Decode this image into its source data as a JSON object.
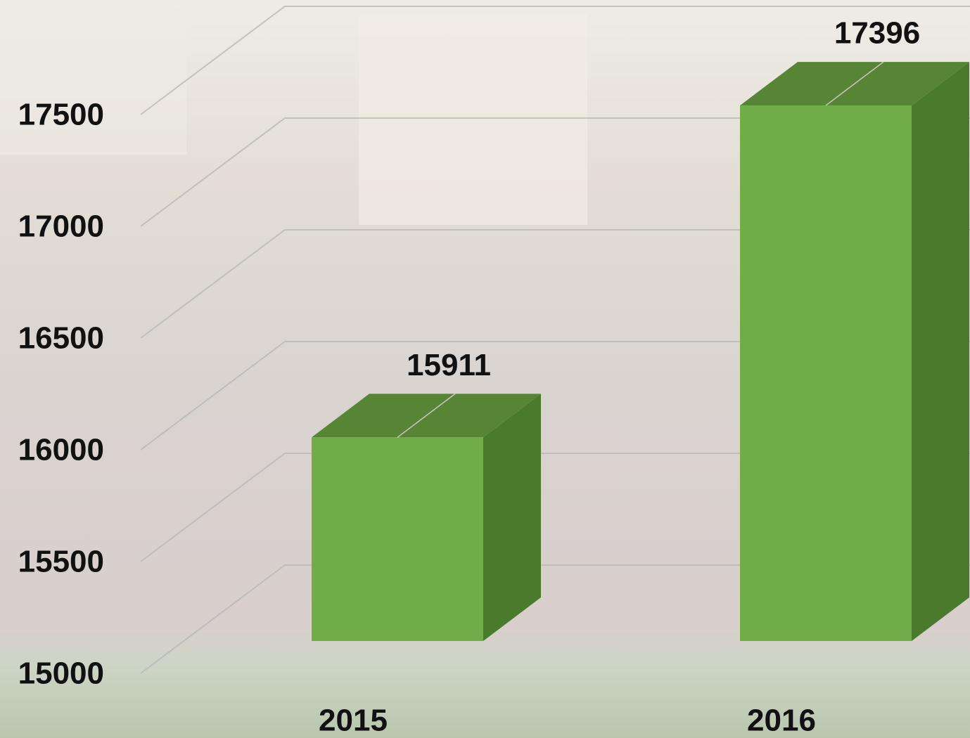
{
  "chart_data": {
    "type": "bar3d",
    "categories": [
      "2015",
      "2016"
    ],
    "values": [
      15911,
      17396
    ],
    "color": "#70ad47",
    "ylim": [
      15000,
      17500
    ],
    "yticks": [
      15000,
      15500,
      16000,
      16500,
      17000,
      17500
    ],
    "grid": true
  }
}
